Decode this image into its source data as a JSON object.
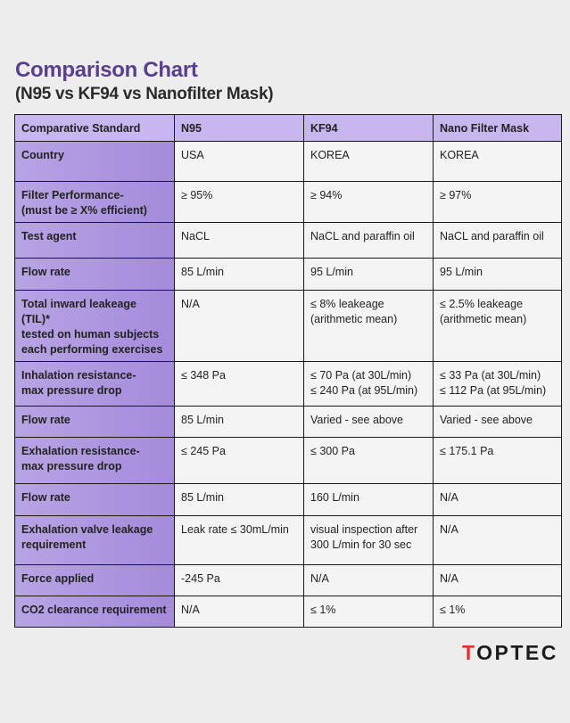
{
  "title": "Comparison Chart",
  "subtitle": "(N95 vs KF94 vs Nanofilter Mask)",
  "table": {
    "headers": [
      "Comparative Standard",
      "N95",
      "KF94",
      "Nano Filter Mask"
    ],
    "rows": [
      {
        "label": [
          "Country"
        ],
        "n95": [
          "USA"
        ],
        "kf94": [
          "KOREA"
        ],
        "nano": [
          "KOREA"
        ]
      },
      {
        "label": [
          "Filter Performance-",
          "(must be ≥ X% efficient)"
        ],
        "n95": [
          "≥ 95%"
        ],
        "kf94": [
          "≥ 94%"
        ],
        "nano": [
          "≥ 97%"
        ]
      },
      {
        "label": [
          "Test agent"
        ],
        "n95": [
          "NaCL"
        ],
        "kf94": [
          "NaCL and paraffin oil"
        ],
        "nano": [
          "NaCL and paraffin oil"
        ]
      },
      {
        "label": [
          "Flow rate"
        ],
        "n95": [
          "85 L/min"
        ],
        "kf94": [
          "95 L/min"
        ],
        "nano": [
          "95 L/min"
        ]
      },
      {
        "label": [
          "Total inward leakeage (TIL)*",
          "tested on human subjects",
          "each performing exercises"
        ],
        "n95": [
          "N/A"
        ],
        "kf94": [
          "≤ 8% leakeage",
          "(arithmetic mean)"
        ],
        "nano": [
          "≤ 2.5% leakeage",
          "(arithmetic mean)"
        ]
      },
      {
        "label": [
          "Inhalation resistance-",
          "max pressure drop"
        ],
        "n95": [
          "≤ 348 Pa"
        ],
        "kf94": [
          "≤ 70 Pa (at 30L/min)",
          "≤ 240 Pa (at 95L/min)"
        ],
        "nano": [
          "≤ 33 Pa (at 30L/min)",
          "≤ 112 Pa (at 95L/min)"
        ]
      },
      {
        "label": [
          "Flow rate"
        ],
        "n95": [
          "85 L/min"
        ],
        "kf94": [
          "Varied - see above"
        ],
        "nano": [
          "Varied - see above"
        ]
      },
      {
        "label": [
          "Exhalation resistance-",
          "max pressure drop"
        ],
        "n95": [
          "≤ 245 Pa"
        ],
        "kf94": [
          "≤ 300 Pa"
        ],
        "nano": [
          "≤ 175.1 Pa"
        ]
      },
      {
        "label": [
          "Flow rate"
        ],
        "n95": [
          "85 L/min"
        ],
        "kf94": [
          "160 L/min"
        ],
        "nano": [
          "N/A"
        ]
      },
      {
        "label": [
          "Exhalation valve leakage",
          "requirement"
        ],
        "n95": [
          "Leak rate ≤ 30mL/min"
        ],
        "kf94": [
          "visual inspection after",
          "300 L/min for 30 sec"
        ],
        "nano": [
          "N/A"
        ]
      },
      {
        "label": [
          "Force applied"
        ],
        "n95": [
          "-245 Pa"
        ],
        "kf94": [
          "N/A"
        ],
        "nano": [
          "N/A"
        ]
      },
      {
        "label": [
          "CO2 clearance requirement"
        ],
        "n95": [
          "N/A"
        ],
        "kf94": [
          "≤ 1%"
        ],
        "nano": [
          "≤ 1%"
        ]
      }
    ]
  },
  "logo": {
    "text_first": "T",
    "text_rest": "OPTEC",
    "accent_color": "#e4312b"
  }
}
